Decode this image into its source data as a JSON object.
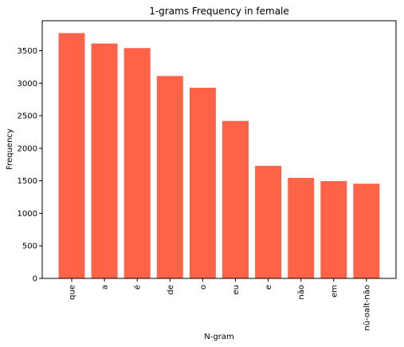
{
  "chart_data": {
    "type": "bar",
    "title": "1-grams Frequency in female",
    "xlabel": "N-gram",
    "ylabel": "Frequency",
    "categories": [
      "que",
      "a",
      "é",
      "de",
      "o",
      "eu",
      "e",
      "não",
      "em",
      "nũ-oalt-não"
    ],
    "values": [
      3770,
      3610,
      3540,
      3110,
      2930,
      2420,
      1730,
      1545,
      1495,
      1455
    ],
    "ylim": [
      0,
      3960
    ],
    "yticks": [
      0,
      500,
      1000,
      1500,
      2000,
      2500,
      3000,
      3500
    ],
    "bar_color": "#ff6347",
    "grid": false,
    "legend": "none"
  }
}
